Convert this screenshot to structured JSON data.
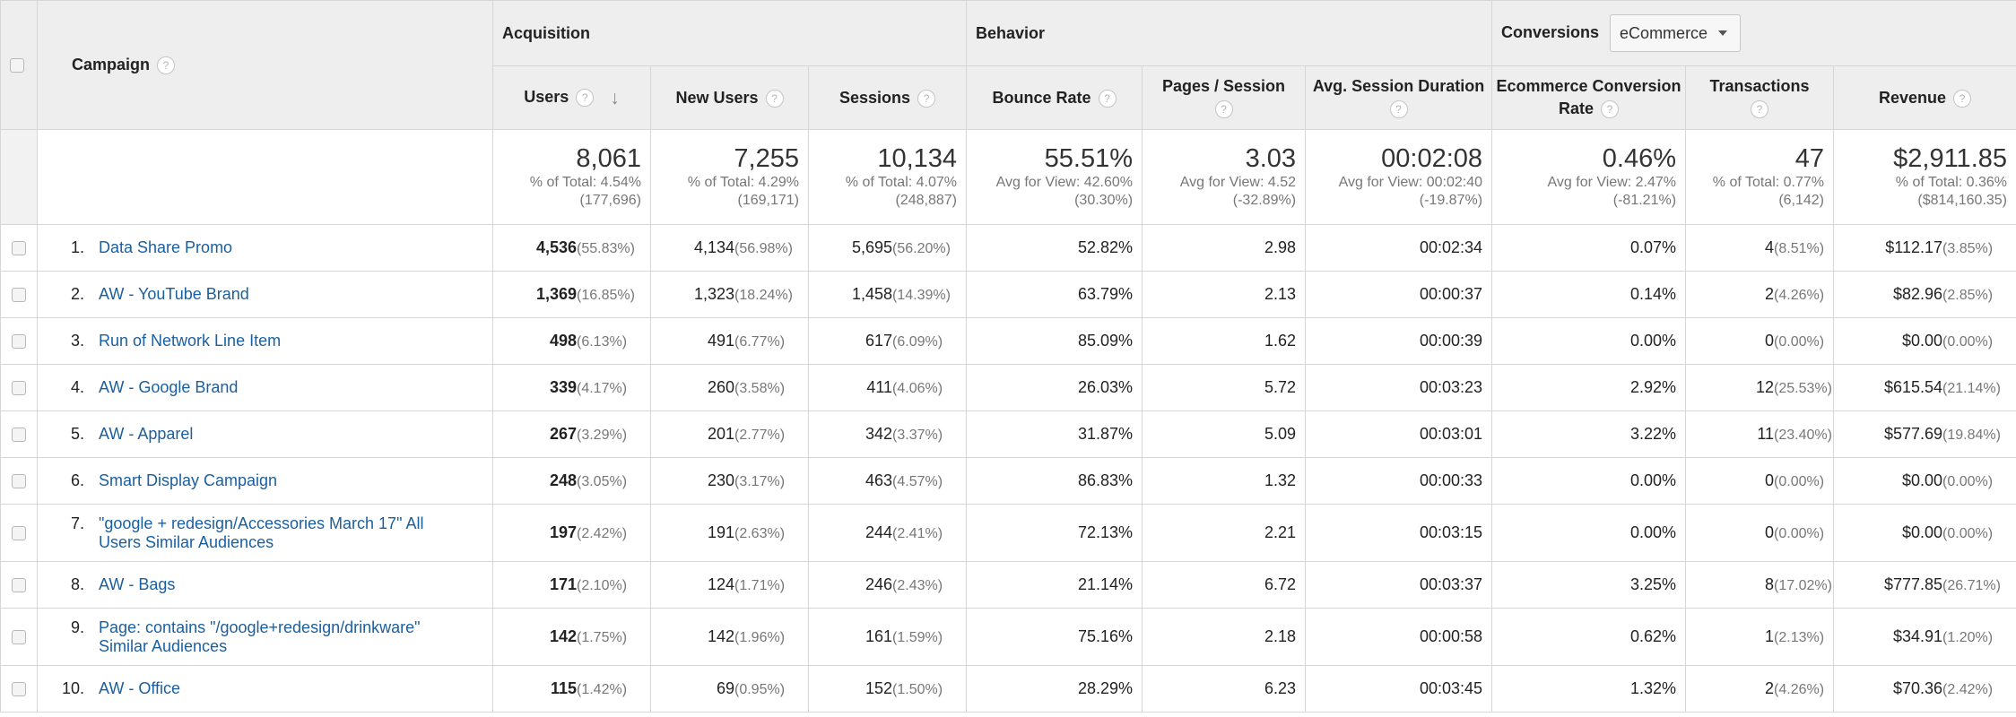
{
  "header": {
    "campaign_label": "Campaign",
    "groups": {
      "acquisition": "Acquisition",
      "behavior": "Behavior",
      "conversions": "Conversions"
    },
    "conversion_select_value": "eCommerce",
    "columns": [
      "Users",
      "New Users",
      "Sessions",
      "Bounce Rate",
      "Pages / Session",
      "Avg. Session Duration",
      "Ecommerce Conversion Rate",
      "Transactions",
      "Revenue"
    ],
    "help_glyph": "?",
    "sort_arrow": "↓"
  },
  "totals": {
    "users": {
      "value": "8,061",
      "line1": "% of Total: 4.54%",
      "line2": "(177,696)"
    },
    "new_users": {
      "value": "7,255",
      "line1": "% of Total: 4.29%",
      "line2": "(169,171)"
    },
    "sessions": {
      "value": "10,134",
      "line1": "% of Total: 4.07%",
      "line2": "(248,887)"
    },
    "bounce_rate": {
      "value": "55.51%",
      "line1": "Avg for View: 42.60%",
      "line2": "(30.30%)"
    },
    "pages_session": {
      "value": "3.03",
      "line1": "Avg for View: 4.52",
      "line2": "(-32.89%)"
    },
    "avg_duration": {
      "value": "00:02:08",
      "line1": "Avg for View: 00:02:40",
      "line2": "(-19.87%)"
    },
    "conversion_rate": {
      "value": "0.46%",
      "line1": "Avg for View: 2.47%",
      "line2": "(-81.21%)"
    },
    "transactions": {
      "value": "47",
      "line1": "% of Total: 0.77%",
      "line2": "(6,142)"
    },
    "revenue": {
      "value": "$2,911.85",
      "line1": "% of Total: 0.36%",
      "line2": "($814,160.35)"
    }
  },
  "rows": [
    {
      "idx": "1.",
      "name": "Data Share Promo",
      "users": "4,536",
      "users_pct": "(55.83%)",
      "new_users": "4,134",
      "new_users_pct": "(56.98%)",
      "sessions": "5,695",
      "sessions_pct": "(56.20%)",
      "bounce": "52.82%",
      "pps": "2.98",
      "dur": "00:02:34",
      "conv": "0.07%",
      "trans": "4",
      "trans_pct": "(8.51%)",
      "rev": "$112.17",
      "rev_pct": "(3.85%)"
    },
    {
      "idx": "2.",
      "name": "AW - YouTube Brand",
      "users": "1,369",
      "users_pct": "(16.85%)",
      "new_users": "1,323",
      "new_users_pct": "(18.24%)",
      "sessions": "1,458",
      "sessions_pct": "(14.39%)",
      "bounce": "63.79%",
      "pps": "2.13",
      "dur": "00:00:37",
      "conv": "0.14%",
      "trans": "2",
      "trans_pct": "(4.26%)",
      "rev": "$82.96",
      "rev_pct": "(2.85%)"
    },
    {
      "idx": "3.",
      "name": "Run of Network Line Item",
      "users": "498",
      "users_pct": "(6.13%)",
      "new_users": "491",
      "new_users_pct": "(6.77%)",
      "sessions": "617",
      "sessions_pct": "(6.09%)",
      "bounce": "85.09%",
      "pps": "1.62",
      "dur": "00:00:39",
      "conv": "0.00%",
      "trans": "0",
      "trans_pct": "(0.00%)",
      "rev": "$0.00",
      "rev_pct": "(0.00%)"
    },
    {
      "idx": "4.",
      "name": "AW - Google Brand",
      "users": "339",
      "users_pct": "(4.17%)",
      "new_users": "260",
      "new_users_pct": "(3.58%)",
      "sessions": "411",
      "sessions_pct": "(4.06%)",
      "bounce": "26.03%",
      "pps": "5.72",
      "dur": "00:03:23",
      "conv": "2.92%",
      "trans": "12",
      "trans_pct": "(25.53%)",
      "rev": "$615.54",
      "rev_pct": "(21.14%)"
    },
    {
      "idx": "5.",
      "name": "AW - Apparel",
      "users": "267",
      "users_pct": "(3.29%)",
      "new_users": "201",
      "new_users_pct": "(2.77%)",
      "sessions": "342",
      "sessions_pct": "(3.37%)",
      "bounce": "31.87%",
      "pps": "5.09",
      "dur": "00:03:01",
      "conv": "3.22%",
      "trans": "11",
      "trans_pct": "(23.40%)",
      "rev": "$577.69",
      "rev_pct": "(19.84%)"
    },
    {
      "idx": "6.",
      "name": "Smart Display Campaign",
      "users": "248",
      "users_pct": "(3.05%)",
      "new_users": "230",
      "new_users_pct": "(3.17%)",
      "sessions": "463",
      "sessions_pct": "(4.57%)",
      "bounce": "86.83%",
      "pps": "1.32",
      "dur": "00:00:33",
      "conv": "0.00%",
      "trans": "0",
      "trans_pct": "(0.00%)",
      "rev": "$0.00",
      "rev_pct": "(0.00%)"
    },
    {
      "idx": "7.",
      "name": "\"google + redesign/Accessories March 17\" All Users Similar Audiences",
      "users": "197",
      "users_pct": "(2.42%)",
      "new_users": "191",
      "new_users_pct": "(2.63%)",
      "sessions": "244",
      "sessions_pct": "(2.41%)",
      "bounce": "72.13%",
      "pps": "2.21",
      "dur": "00:03:15",
      "conv": "0.00%",
      "trans": "0",
      "trans_pct": "(0.00%)",
      "rev": "$0.00",
      "rev_pct": "(0.00%)"
    },
    {
      "idx": "8.",
      "name": "AW - Bags",
      "users": "171",
      "users_pct": "(2.10%)",
      "new_users": "124",
      "new_users_pct": "(1.71%)",
      "sessions": "246",
      "sessions_pct": "(2.43%)",
      "bounce": "21.14%",
      "pps": "6.72",
      "dur": "00:03:37",
      "conv": "3.25%",
      "trans": "8",
      "trans_pct": "(17.02%)",
      "rev": "$777.85",
      "rev_pct": "(26.71%)"
    },
    {
      "idx": "9.",
      "name": "Page: contains \"/google+redesign/drinkware\" Similar Audiences",
      "users": "142",
      "users_pct": "(1.75%)",
      "new_users": "142",
      "new_users_pct": "(1.96%)",
      "sessions": "161",
      "sessions_pct": "(1.59%)",
      "bounce": "75.16%",
      "pps": "2.18",
      "dur": "00:00:58",
      "conv": "0.62%",
      "trans": "1",
      "trans_pct": "(2.13%)",
      "rev": "$34.91",
      "rev_pct": "(1.20%)"
    },
    {
      "idx": "10.",
      "name": "AW - Office",
      "users": "115",
      "users_pct": "(1.42%)",
      "new_users": "69",
      "new_users_pct": "(0.95%)",
      "sessions": "152",
      "sessions_pct": "(1.50%)",
      "bounce": "28.29%",
      "pps": "6.23",
      "dur": "00:03:45",
      "conv": "1.32%",
      "trans": "2",
      "trans_pct": "(4.26%)",
      "rev": "$70.36",
      "rev_pct": "(2.42%)"
    }
  ]
}
